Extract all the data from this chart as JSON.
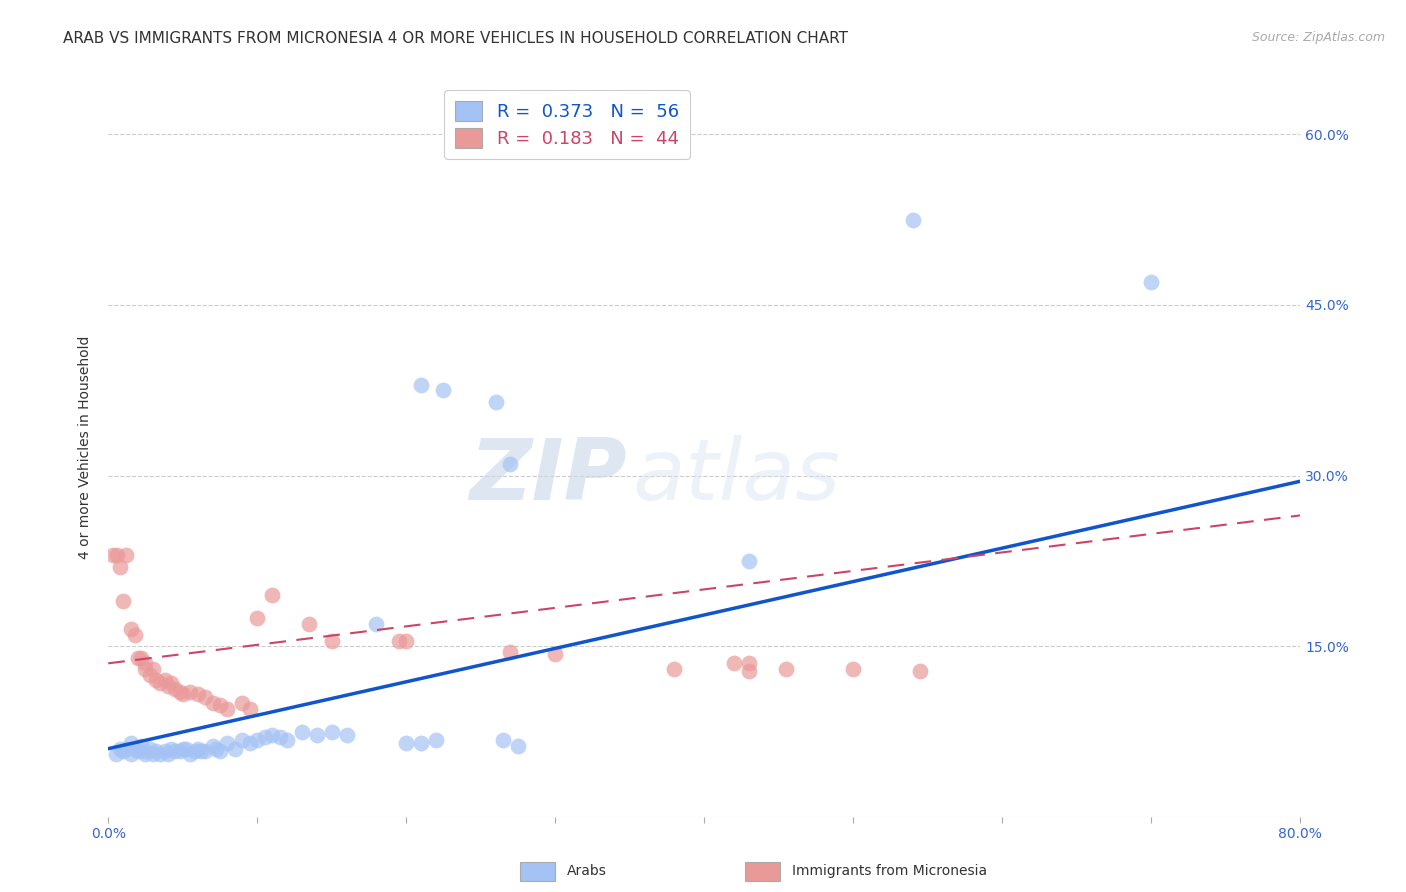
{
  "title": "ARAB VS IMMIGRANTS FROM MICRONESIA 4 OR MORE VEHICLES IN HOUSEHOLD CORRELATION CHART",
  "source": "Source: ZipAtlas.com",
  "ylabel": "4 or more Vehicles in Household",
  "xlim": [
    0.0,
    0.8
  ],
  "ylim": [
    0.0,
    0.65
  ],
  "xticks": [
    0.0,
    0.1,
    0.2,
    0.3,
    0.4,
    0.5,
    0.6,
    0.7,
    0.8
  ],
  "xticklabels": [
    "0.0%",
    "",
    "",
    "",
    "",
    "",
    "",
    "",
    "80.0%"
  ],
  "ytick_positions": [
    0.0,
    0.15,
    0.3,
    0.45,
    0.6
  ],
  "ytick_labels_right": [
    "",
    "15.0%",
    "30.0%",
    "45.0%",
    "60.0%"
  ],
  "grid_color": "#cccccc",
  "background_color": "#ffffff",
  "watermark_zip": "ZIP",
  "watermark_atlas": "atlas",
  "legend_blue_R": "0.373",
  "legend_blue_N": "56",
  "legend_pink_R": "0.183",
  "legend_pink_N": "44",
  "legend_label_blue": "Arabs",
  "legend_label_pink": "Immigrants from Micronesia",
  "blue_color": "#a4c2f4",
  "pink_color": "#ea9999",
  "line_blue_color": "#1155cc",
  "line_pink_color": "#cc4466",
  "blue_scatter": [
    [
      0.005,
      0.055
    ],
    [
      0.008,
      0.06
    ],
    [
      0.01,
      0.058
    ],
    [
      0.012,
      0.06
    ],
    [
      0.015,
      0.055
    ],
    [
      0.015,
      0.065
    ],
    [
      0.018,
      0.06
    ],
    [
      0.02,
      0.058
    ],
    [
      0.022,
      0.062
    ],
    [
      0.025,
      0.058
    ],
    [
      0.025,
      0.055
    ],
    [
      0.028,
      0.06
    ],
    [
      0.03,
      0.055
    ],
    [
      0.032,
      0.058
    ],
    [
      0.035,
      0.055
    ],
    [
      0.038,
      0.058
    ],
    [
      0.04,
      0.055
    ],
    [
      0.042,
      0.06
    ],
    [
      0.045,
      0.058
    ],
    [
      0.048,
      0.058
    ],
    [
      0.05,
      0.06
    ],
    [
      0.052,
      0.06
    ],
    [
      0.055,
      0.055
    ],
    [
      0.058,
      0.058
    ],
    [
      0.06,
      0.06
    ],
    [
      0.062,
      0.058
    ],
    [
      0.065,
      0.058
    ],
    [
      0.07,
      0.062
    ],
    [
      0.072,
      0.06
    ],
    [
      0.075,
      0.058
    ],
    [
      0.08,
      0.065
    ],
    [
      0.085,
      0.06
    ],
    [
      0.09,
      0.068
    ],
    [
      0.095,
      0.065
    ],
    [
      0.1,
      0.068
    ],
    [
      0.105,
      0.07
    ],
    [
      0.11,
      0.072
    ],
    [
      0.115,
      0.07
    ],
    [
      0.12,
      0.068
    ],
    [
      0.13,
      0.075
    ],
    [
      0.14,
      0.072
    ],
    [
      0.15,
      0.075
    ],
    [
      0.16,
      0.072
    ],
    [
      0.18,
      0.17
    ],
    [
      0.2,
      0.065
    ],
    [
      0.21,
      0.065
    ],
    [
      0.22,
      0.068
    ],
    [
      0.265,
      0.068
    ],
    [
      0.275,
      0.062
    ],
    [
      0.21,
      0.38
    ],
    [
      0.225,
      0.375
    ],
    [
      0.26,
      0.365
    ],
    [
      0.27,
      0.31
    ],
    [
      0.43,
      0.225
    ],
    [
      0.54,
      0.525
    ],
    [
      0.7,
      0.47
    ]
  ],
  "pink_scatter": [
    [
      0.003,
      0.23
    ],
    [
      0.006,
      0.23
    ],
    [
      0.008,
      0.22
    ],
    [
      0.01,
      0.19
    ],
    [
      0.012,
      0.23
    ],
    [
      0.015,
      0.165
    ],
    [
      0.018,
      0.16
    ],
    [
      0.02,
      0.14
    ],
    [
      0.022,
      0.14
    ],
    [
      0.025,
      0.135
    ],
    [
      0.025,
      0.13
    ],
    [
      0.028,
      0.125
    ],
    [
      0.03,
      0.13
    ],
    [
      0.032,
      0.12
    ],
    [
      0.035,
      0.118
    ],
    [
      0.038,
      0.12
    ],
    [
      0.04,
      0.115
    ],
    [
      0.042,
      0.118
    ],
    [
      0.045,
      0.112
    ],
    [
      0.048,
      0.11
    ],
    [
      0.05,
      0.108
    ],
    [
      0.055,
      0.11
    ],
    [
      0.06,
      0.108
    ],
    [
      0.065,
      0.105
    ],
    [
      0.07,
      0.1
    ],
    [
      0.075,
      0.098
    ],
    [
      0.08,
      0.095
    ],
    [
      0.09,
      0.1
    ],
    [
      0.095,
      0.095
    ],
    [
      0.1,
      0.175
    ],
    [
      0.11,
      0.195
    ],
    [
      0.135,
      0.17
    ],
    [
      0.15,
      0.155
    ],
    [
      0.195,
      0.155
    ],
    [
      0.2,
      0.155
    ],
    [
      0.27,
      0.145
    ],
    [
      0.3,
      0.143
    ],
    [
      0.38,
      0.13
    ],
    [
      0.42,
      0.135
    ],
    [
      0.43,
      0.135
    ],
    [
      0.455,
      0.13
    ],
    [
      0.5,
      0.13
    ],
    [
      0.545,
      0.128
    ],
    [
      0.43,
      0.128
    ]
  ],
  "blue_line_x": [
    0.0,
    0.8
  ],
  "blue_line_y": [
    0.06,
    0.295
  ],
  "pink_line_x": [
    0.0,
    0.8
  ],
  "pink_line_y": [
    0.135,
    0.265
  ],
  "title_fontsize": 11,
  "source_fontsize": 9,
  "ylabel_fontsize": 10,
  "tick_fontsize": 10,
  "legend_fontsize": 13
}
